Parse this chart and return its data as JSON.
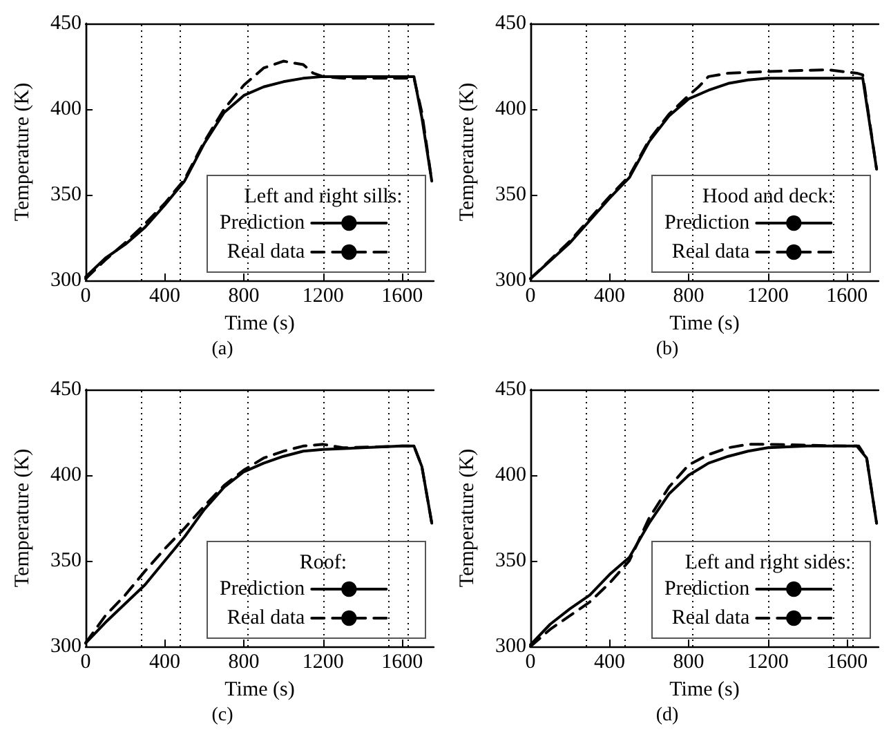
{
  "chart_data": [
    {
      "type": "line",
      "title": "(a)",
      "xlabel": "Time (s)",
      "ylabel": "Temperature (K)",
      "legend_title": "Left and right sills:",
      "legend": "bottom right",
      "grid": false,
      "marker": "none",
      "xlim": [
        0,
        1760
      ],
      "xticks": [
        0,
        400,
        800,
        1200,
        1600
      ],
      "ylim": [
        300,
        450
      ],
      "yticks": [
        300,
        350,
        400,
        450
      ],
      "ref_lines": [
        {
          "axis": "x",
          "value": 280,
          "line_style": "dotted",
          "color": "#000000"
        },
        {
          "axis": "x",
          "value": 480,
          "line_style": "dotted",
          "color": "#000000"
        },
        {
          "axis": "x",
          "value": 820,
          "line_style": "dotted",
          "color": "#000000"
        },
        {
          "axis": "x",
          "value": 1200,
          "line_style": "dotted",
          "color": "#000000"
        },
        {
          "axis": "x",
          "value": 1530,
          "line_style": "dotted",
          "color": "#000000"
        },
        {
          "axis": "x",
          "value": 1630,
          "line_style": "dotted",
          "color": "#000000"
        }
      ],
      "series": [
        {
          "name": "Prediction",
          "color": "#000000",
          "line_style": "solid",
          "x": [
            0,
            100,
            200,
            300,
            400,
            500,
            600,
            700,
            800,
            900,
            1000,
            1100,
            1200,
            1400,
            1600,
            1660,
            1700,
            1750
          ],
          "values": [
            302,
            313,
            321,
            331,
            344,
            358,
            380,
            398,
            408,
            413,
            416,
            418,
            419,
            419,
            419,
            419,
            395,
            358
          ]
        },
        {
          "name": "Real data",
          "color": "#000000",
          "line_style": "dashed",
          "x": [
            0,
            100,
            200,
            300,
            400,
            500,
            600,
            700,
            800,
            900,
            1000,
            1100,
            1150,
            1200,
            1300,
            1600,
            1660,
            1700,
            1750
          ],
          "values": [
            301,
            312,
            322,
            333,
            345,
            359,
            381,
            400,
            414,
            424,
            428,
            426,
            421,
            419,
            418,
            418,
            418,
            398,
            358
          ]
        }
      ]
    },
    {
      "type": "line",
      "title": "(b)",
      "xlabel": "Time (s)",
      "ylabel": "Temperature (K)",
      "legend_title": "Hood and deck:",
      "legend": "bottom right",
      "grid": false,
      "marker": "none",
      "xlim": [
        0,
        1760
      ],
      "xticks": [
        0,
        400,
        800,
        1200,
        1600
      ],
      "ylim": [
        300,
        450
      ],
      "yticks": [
        300,
        350,
        400,
        450
      ],
      "ref_lines": [
        {
          "axis": "x",
          "value": 280,
          "line_style": "dotted",
          "color": "#000000"
        },
        {
          "axis": "x",
          "value": 480,
          "line_style": "dotted",
          "color": "#000000"
        },
        {
          "axis": "x",
          "value": 820,
          "line_style": "dotted",
          "color": "#000000"
        },
        {
          "axis": "x",
          "value": 1200,
          "line_style": "dotted",
          "color": "#000000"
        },
        {
          "axis": "x",
          "value": 1530,
          "line_style": "dotted",
          "color": "#000000"
        },
        {
          "axis": "x",
          "value": 1630,
          "line_style": "dotted",
          "color": "#000000"
        }
      ],
      "series": [
        {
          "name": "Prediction",
          "color": "#000000",
          "line_style": "solid",
          "x": [
            0,
            200,
            400,
            500,
            600,
            700,
            800,
            900,
            1000,
            1100,
            1200,
            1680,
            1750
          ],
          "values": [
            301,
            322,
            348,
            360,
            381,
            396,
            406,
            411,
            415,
            417,
            418,
            418,
            365
          ]
        },
        {
          "name": "Real data",
          "color": "#000000",
          "line_style": "dashed",
          "x": [
            0,
            200,
            400,
            500,
            600,
            700,
            800,
            850,
            900,
            1000,
            1200,
            1500,
            1650,
            1680,
            1750
          ],
          "values": [
            301,
            323,
            349,
            361,
            382,
            397,
            408,
            413,
            419,
            421,
            422,
            423,
            421,
            420,
            365
          ]
        }
      ]
    },
    {
      "type": "line",
      "title": "(c)",
      "xlabel": "Time (s)",
      "ylabel": "Temperature (K)",
      "legend_title": "Roof:",
      "legend": "bottom right",
      "grid": false,
      "marker": "none",
      "xlim": [
        0,
        1760
      ],
      "xticks": [
        0,
        400,
        800,
        1200,
        1600
      ],
      "ylim": [
        300,
        450
      ],
      "yticks": [
        300,
        350,
        400,
        450
      ],
      "ref_lines": [
        {
          "axis": "x",
          "value": 280,
          "line_style": "dotted",
          "color": "#000000"
        },
        {
          "axis": "x",
          "value": 480,
          "line_style": "dotted",
          "color": "#000000"
        },
        {
          "axis": "x",
          "value": 820,
          "line_style": "dotted",
          "color": "#000000"
        },
        {
          "axis": "x",
          "value": 1200,
          "line_style": "dotted",
          "color": "#000000"
        },
        {
          "axis": "x",
          "value": 1530,
          "line_style": "dotted",
          "color": "#000000"
        },
        {
          "axis": "x",
          "value": 1630,
          "line_style": "dotted",
          "color": "#000000"
        }
      ],
      "series": [
        {
          "name": "Prediction",
          "color": "#000000",
          "line_style": "solid",
          "x": [
            0,
            100,
            200,
            300,
            400,
            500,
            600,
            700,
            800,
            900,
            1000,
            1100,
            1200,
            1400,
            1600,
            1660,
            1700,
            1750
          ],
          "values": [
            302,
            314,
            325,
            336,
            350,
            364,
            380,
            393,
            402,
            407,
            411,
            414,
            415,
            416,
            417,
            417,
            405,
            372
          ]
        },
        {
          "name": "Real data",
          "color": "#000000",
          "line_style": "dashed",
          "x": [
            0,
            100,
            200,
            300,
            400,
            500,
            600,
            700,
            800,
            900,
            1000,
            1100,
            1200,
            1300,
            1600,
            1660,
            1700,
            1750
          ],
          "values": [
            302,
            318,
            330,
            344,
            357,
            369,
            382,
            394,
            403,
            410,
            414,
            417,
            418,
            416,
            417,
            417,
            405,
            372
          ]
        }
      ]
    },
    {
      "type": "line",
      "title": "(d)",
      "xlabel": "Time (s)",
      "ylabel": "Temperature (K)",
      "legend_title": "Left and right sides:",
      "legend": "bottom right",
      "grid": false,
      "marker": "none",
      "xlim": [
        0,
        1760
      ],
      "xticks": [
        0,
        400,
        800,
        1200,
        1600
      ],
      "ylim": [
        300,
        450
      ],
      "yticks": [
        300,
        350,
        400,
        450
      ],
      "ref_lines": [
        {
          "axis": "x",
          "value": 280,
          "line_style": "dotted",
          "color": "#000000"
        },
        {
          "axis": "x",
          "value": 480,
          "line_style": "dotted",
          "color": "#000000"
        },
        {
          "axis": "x",
          "value": 820,
          "line_style": "dotted",
          "color": "#000000"
        },
        {
          "axis": "x",
          "value": 1200,
          "line_style": "dotted",
          "color": "#000000"
        },
        {
          "axis": "x",
          "value": 1530,
          "line_style": "dotted",
          "color": "#000000"
        },
        {
          "axis": "x",
          "value": 1630,
          "line_style": "dotted",
          "color": "#000000"
        }
      ],
      "series": [
        {
          "name": "Prediction",
          "color": "#000000",
          "line_style": "solid",
          "x": [
            0,
            100,
            200,
            300,
            400,
            500,
            600,
            700,
            800,
            900,
            1000,
            1100,
            1200,
            1400,
            1650,
            1700,
            1750
          ],
          "values": [
            301,
            313,
            322,
            330,
            342,
            352,
            372,
            389,
            400,
            407,
            411,
            414,
            416,
            417,
            417,
            410,
            372
          ]
        },
        {
          "name": "Real data",
          "color": "#000000",
          "line_style": "dashed",
          "x": [
            0,
            100,
            200,
            300,
            400,
            500,
            600,
            700,
            800,
            900,
            1000,
            1100,
            1200,
            1600,
            1660,
            1700,
            1750
          ],
          "values": [
            300,
            310,
            318,
            326,
            337,
            350,
            375,
            393,
            406,
            412,
            416,
            418,
            418,
            417,
            417,
            410,
            372
          ]
        }
      ]
    }
  ]
}
